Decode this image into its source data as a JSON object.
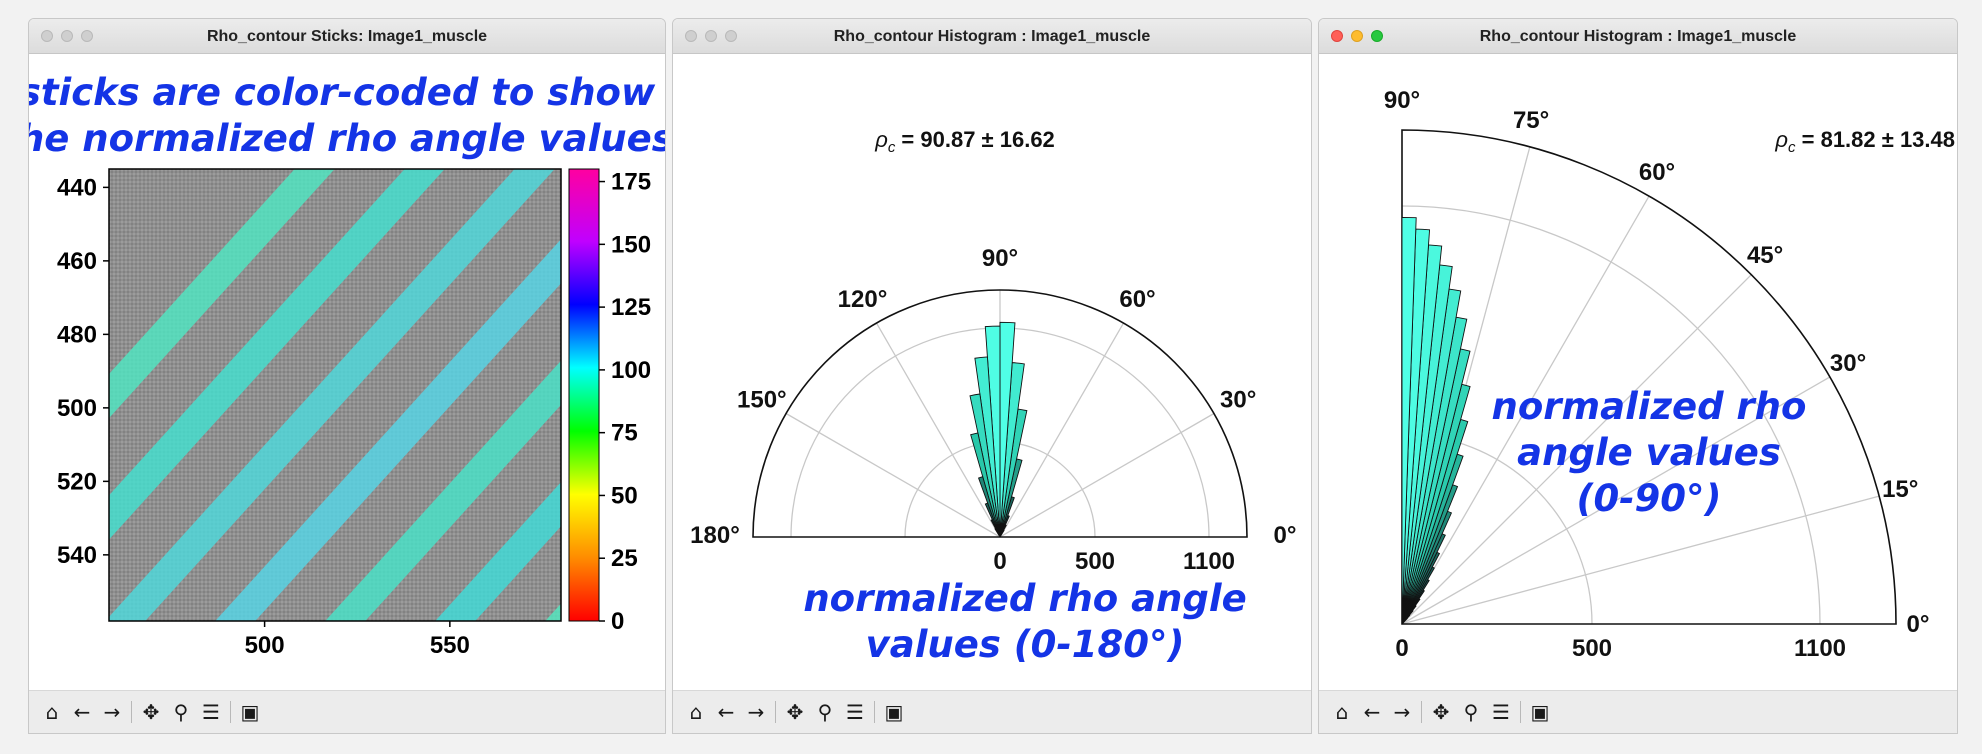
{
  "windows": [
    {
      "title": "Rho_contour Sticks: Image1_muscle",
      "annotation_line1": "sticks are color-coded to show",
      "annotation_line2": "the normalized rho angle values",
      "y_ticks": [
        "440",
        "460",
        "480",
        "500",
        "520",
        "540"
      ],
      "x_ticks": [
        "500",
        "550"
      ],
      "colorbar_ticks": [
        "175",
        "150",
        "125",
        "100",
        "75",
        "50",
        "25",
        "0"
      ]
    },
    {
      "title": "Rho_contour Histogram : Image1_muscle",
      "stat_symbol": "ρ",
      "stat_sub": "c",
      "stat_text": " = 90.87 ± 16.62",
      "angle_labels": [
        "0°",
        "30°",
        "60°",
        "90°",
        "120°",
        "150°",
        "180°"
      ],
      "radial_labels": [
        "0",
        "500",
        "1100"
      ],
      "annotation_line1": "normalized rho angle",
      "annotation_line2": "values (0-180°)"
    },
    {
      "title": "Rho_contour Histogram : Image1_muscle",
      "stat_symbol": "ρ",
      "stat_sub": "c",
      "stat_text": " = 81.82 ± 13.48",
      "angle_labels": [
        "0°",
        "15°",
        "30°",
        "45°",
        "60°",
        "75°",
        "90°"
      ],
      "radial_labels": [
        "0",
        "500",
        "1100"
      ],
      "annotation_line1": "normalized rho",
      "annotation_line2": "angle values",
      "annotation_line3": "(0-90°)"
    }
  ],
  "toolbar_icons": [
    "home-icon",
    "back-arrow-icon",
    "forward-arrow-icon",
    "pan-icon",
    "zoom-icon",
    "configure-subplots-icon",
    "save-icon"
  ],
  "chart_data": [
    {
      "type": "heatmap",
      "title": "",
      "xlabel": "",
      "ylabel": "",
      "xlim": [
        458,
        580
      ],
      "ylim": [
        558,
        435
      ],
      "colorbar": {
        "range": [
          0,
          180
        ],
        "ticks": [
          0,
          25,
          50,
          75,
          100,
          125,
          150,
          175
        ]
      },
      "dominant_value": 90
    },
    {
      "type": "bar",
      "polar": true,
      "title": "ρc = 90.87 ± 16.62",
      "theta_range_deg": [
        0,
        180
      ],
      "r_max": 1300,
      "r_ticks": [
        0,
        500,
        1100
      ],
      "x": [
        60,
        64,
        68,
        72,
        76,
        80,
        84,
        88,
        92,
        96,
        100,
        104,
        108,
        112,
        116,
        120
      ],
      "values": [
        40,
        70,
        120,
        220,
        420,
        680,
        920,
        1130,
        1110,
        950,
        760,
        560,
        330,
        190,
        100,
        50
      ]
    },
    {
      "type": "bar",
      "polar": true,
      "title": "ρc = 81.82 ± 13.48",
      "theta_range_deg": [
        0,
        90
      ],
      "r_max": 1300,
      "r_ticks": [
        0,
        500,
        1100
      ],
      "x": [
        47,
        49,
        51,
        53,
        55,
        57,
        59,
        61,
        63,
        65,
        67,
        69,
        71,
        73,
        75,
        77,
        79,
        81,
        83,
        85,
        87,
        89
      ],
      "values": [
        20,
        30,
        45,
        60,
        80,
        105,
        135,
        170,
        210,
        260,
        320,
        390,
        470,
        560,
        650,
        740,
        820,
        890,
        950,
        1000,
        1040,
        1070
      ]
    }
  ]
}
